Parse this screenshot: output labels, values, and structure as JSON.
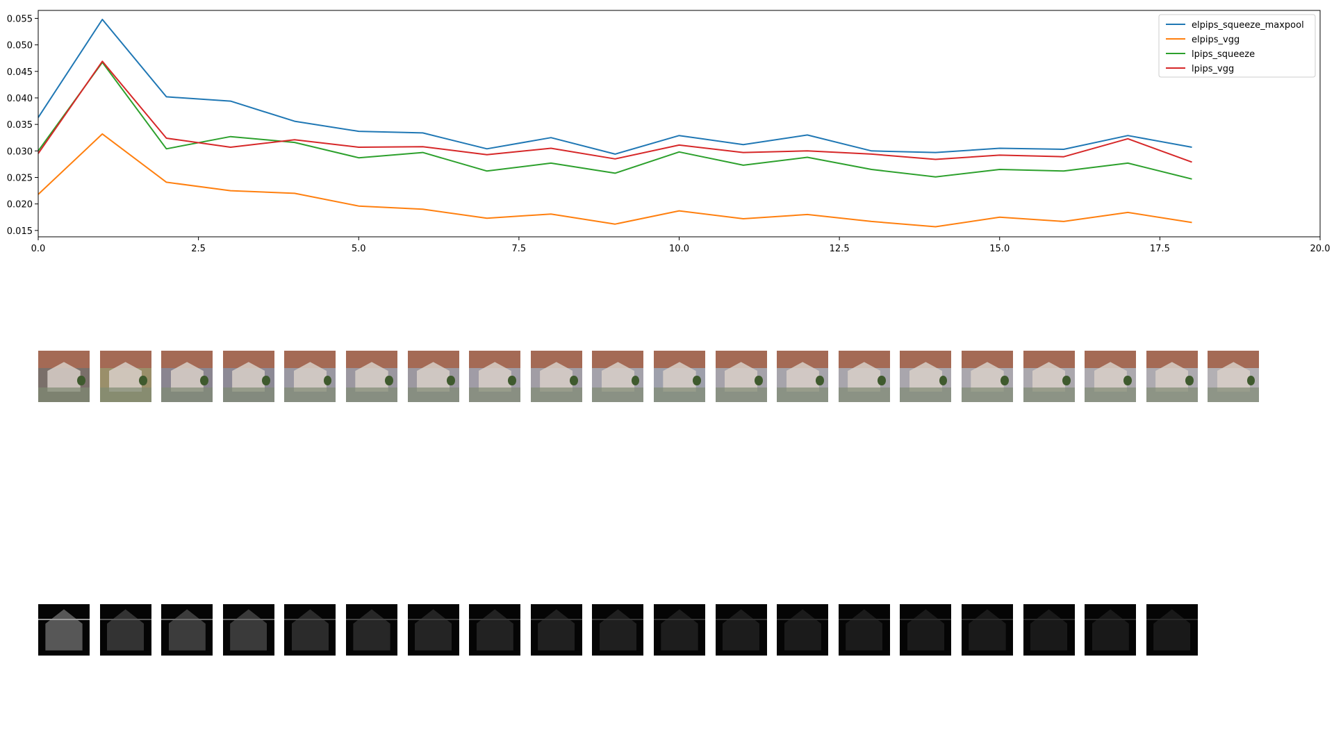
{
  "chart_data": {
    "type": "line",
    "title": "",
    "xlabel": "",
    "ylabel": "",
    "xlim": [
      0,
      20
    ],
    "ylim": [
      0.0138,
      0.0565
    ],
    "xticks": [
      "0.0",
      "2.5",
      "5.0",
      "7.5",
      "10.0",
      "12.5",
      "15.0",
      "17.5",
      "20.0"
    ],
    "yticks": [
      "0.015",
      "0.020",
      "0.025",
      "0.030",
      "0.035",
      "0.040",
      "0.045",
      "0.050",
      "0.055"
    ],
    "x": [
      0,
      1,
      2,
      3,
      4,
      5,
      6,
      7,
      8,
      9,
      10,
      11,
      12,
      13,
      14,
      15,
      16,
      17,
      18
    ],
    "grid": false,
    "legend_position": "top-right",
    "series": [
      {
        "name": "elpips_squeeze_maxpool",
        "color": "#1f77b4",
        "values": [
          0.0363,
          0.0548,
          0.0402,
          0.0394,
          0.0356,
          0.0337,
          0.0334,
          0.0304,
          0.0325,
          0.0294,
          0.0329,
          0.0312,
          0.033,
          0.03,
          0.0297,
          0.0305,
          0.0303,
          0.0329,
          0.0307
        ]
      },
      {
        "name": "elpips_vgg",
        "color": "#ff7f0e",
        "values": [
          0.0218,
          0.0332,
          0.0241,
          0.0225,
          0.022,
          0.0196,
          0.019,
          0.0173,
          0.0181,
          0.0162,
          0.0187,
          0.0172,
          0.018,
          0.0167,
          0.0157,
          0.0175,
          0.0167,
          0.0184,
          0.0165
        ]
      },
      {
        "name": "lpips_squeeze",
        "color": "#2ca02c",
        "values": [
          0.03,
          0.0467,
          0.0304,
          0.0327,
          0.0316,
          0.0287,
          0.0297,
          0.0262,
          0.0277,
          0.0258,
          0.0298,
          0.0273,
          0.0288,
          0.0265,
          0.0251,
          0.0265,
          0.0262,
          0.0277,
          0.0247
        ]
      },
      {
        "name": "lpips_vgg",
        "color": "#d62728",
        "values": [
          0.0295,
          0.0469,
          0.0324,
          0.0307,
          0.0321,
          0.0307,
          0.0308,
          0.0293,
          0.0305,
          0.0285,
          0.0311,
          0.0297,
          0.03,
          0.0294,
          0.0284,
          0.0292,
          0.0289,
          0.0323,
          0.0279
        ]
      }
    ]
  },
  "reconstructions": {
    "count": 20,
    "tints": [
      "#7a6f6a",
      "#9a8f6a",
      "#8a8590",
      "#8d8a96",
      "#9a98a2",
      "#9b97a0",
      "#9c98a0",
      "#a09ca6",
      "#a19da5",
      "#a4a2ab",
      "#9ea0ac",
      "#a5a2aa",
      "#a6a4ab",
      "#a8a5ac",
      "#a9a6ad",
      "#aaa7ae",
      "#aba8ae",
      "#aca9af",
      "#adaab0",
      "#b3b0b4"
    ]
  },
  "error_maps": {
    "count": 19,
    "intensities": [
      "#9a9a9a",
      "#5a5a5a",
      "#6a6a6a",
      "#666666",
      "#4a4a4a",
      "#444444",
      "#3e3e3e",
      "#3a3a3a",
      "#363636",
      "#343434",
      "#323232",
      "#303030",
      "#2e2e2e",
      "#2d2d2d",
      "#2c2c2c",
      "#2b2b2b",
      "#2a2a2a",
      "#2a2a2a",
      "#292929"
    ]
  }
}
